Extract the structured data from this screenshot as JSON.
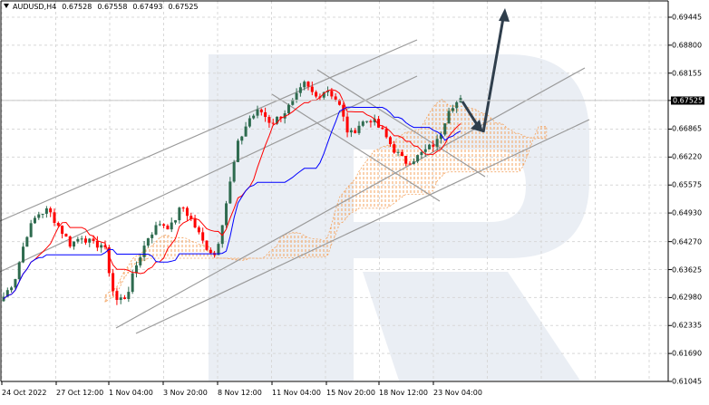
{
  "header": {
    "symbol": "AUDUSD,H4",
    "open": "0.67528",
    "high": "0.67558",
    "low": "0.67493",
    "close": "0.67525"
  },
  "colors": {
    "bull": "#2e6b4f",
    "bear": "#ff0000",
    "tenkan": "#ff0000",
    "kijun": "#0000ff",
    "cloud_bull": "#f4a460",
    "cloud_bear": "#d8bfd8",
    "trendline": "#9a9a9a",
    "arrow": "#2f3e4c",
    "grid": "#d8d8d8",
    "watermark": "#e6ebf2"
  },
  "chart_data": {
    "type": "candlestick",
    "title": "AUDUSD,H4",
    "ohlc_header": [
      0.67528,
      0.67558,
      0.67493,
      0.67525
    ],
    "current_price": 0.67525,
    "ylim": [
      0.61045,
      0.7009
    ],
    "yticks": [
      "0.69445",
      "0.68800",
      "0.68155",
      "0.67525",
      "0.66865",
      "0.66220",
      "0.65575",
      "0.64930",
      "0.64270",
      "0.63625",
      "0.62980",
      "0.62335",
      "0.61690",
      "0.61045"
    ],
    "xticks": [
      "24 Oct 2022",
      "27 Oct 12:00",
      "1 Nov 04:00",
      "3 Nov 20:00",
      "8 Nov 12:00",
      "11 Nov 04:00",
      "15 Nov 20:00",
      "18 Nov 12:00",
      "23 Nov 04:00"
    ],
    "indicators": [
      "Ichimoku Kinko Hyo (Tenkan-sen red, Kijun-sen blue, Kumo cloud)"
    ],
    "annotations": [
      "Ascending channel (upper lines) from 24 Oct",
      "Descending channel lines from 11 Nov high",
      "Ascending support lines from 3 Nov low",
      "Forecast arrow: dip to ~0.6700 then rise toward ~0.6980"
    ],
    "price_path": [
      0.63,
      0.634,
      0.644,
      0.649,
      0.65,
      0.646,
      0.642,
      0.644,
      0.642,
      0.642,
      0.629,
      0.63,
      0.638,
      0.644,
      0.647,
      0.646,
      0.651,
      0.647,
      0.642,
      0.6395,
      0.652,
      0.665,
      0.671,
      0.673,
      0.67,
      0.672,
      0.675,
      0.679,
      0.676,
      0.678,
      0.675,
      0.667,
      0.67,
      0.671,
      0.668,
      0.664,
      0.661,
      0.662,
      0.664,
      0.666,
      0.674,
      0.6752
    ]
  },
  "forecast": {
    "dip_target": 0.67,
    "rise_target": 0.6985
  }
}
